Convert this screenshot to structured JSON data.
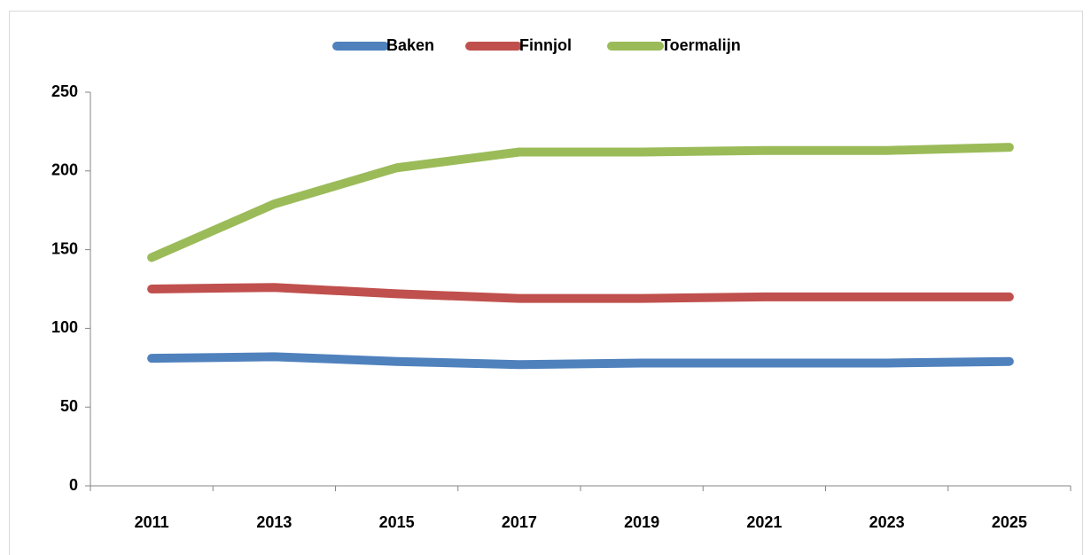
{
  "chart_data": {
    "type": "line",
    "categories": [
      "2011",
      "2013",
      "2015",
      "2017",
      "2019",
      "2021",
      "2023",
      "2025"
    ],
    "series": [
      {
        "name": "Baken",
        "color": "#4f81bd",
        "values": [
          81,
          82,
          79,
          77,
          78,
          78,
          78,
          79
        ]
      },
      {
        "name": "Finnjol",
        "color": "#c0504d",
        "values": [
          125,
          126,
          122,
          119,
          119,
          120,
          120,
          120
        ]
      },
      {
        "name": "Toermalijn",
        "color": "#9bbb59",
        "values": [
          145,
          179,
          202,
          212,
          212,
          213,
          213,
          215
        ]
      }
    ],
    "ylim": [
      0,
      250
    ],
    "yticks": [
      0,
      50,
      100,
      150,
      200,
      250
    ],
    "grid": false,
    "legend": "top"
  }
}
